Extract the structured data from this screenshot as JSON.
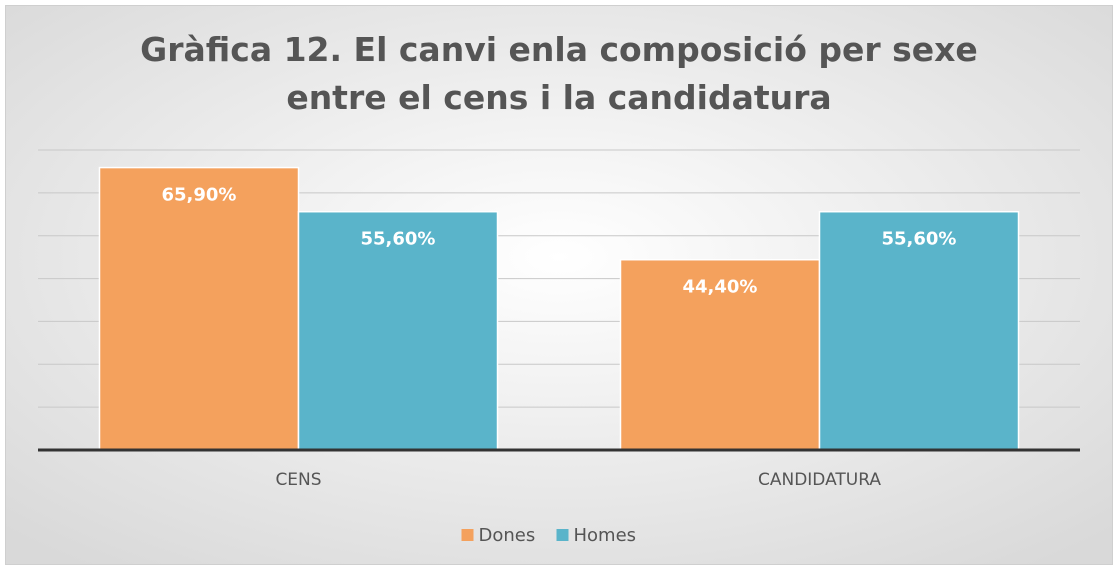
{
  "chart_data": {
    "type": "bar",
    "title": "Gràfica 12. El canvi enla composició per sexe entre el cens i la candidatura",
    "categories": [
      "CENS",
      "CANDIDATURA"
    ],
    "series": [
      {
        "name": "Dones",
        "color": "#f4a15d",
        "values": [
          65.9,
          44.4
        ],
        "value_labels": [
          "65,90%",
          "44,40%"
        ]
      },
      {
        "name": "Homes",
        "color": "#5ab4ca",
        "values": [
          55.6,
          55.6
        ],
        "value_labels": [
          "55,60%",
          "55,60%"
        ]
      }
    ],
    "ylim": [
      0,
      70
    ],
    "yticks": [
      0,
      10,
      20,
      30,
      40,
      50,
      60,
      70
    ],
    "grid": true,
    "legend": "bottom"
  }
}
